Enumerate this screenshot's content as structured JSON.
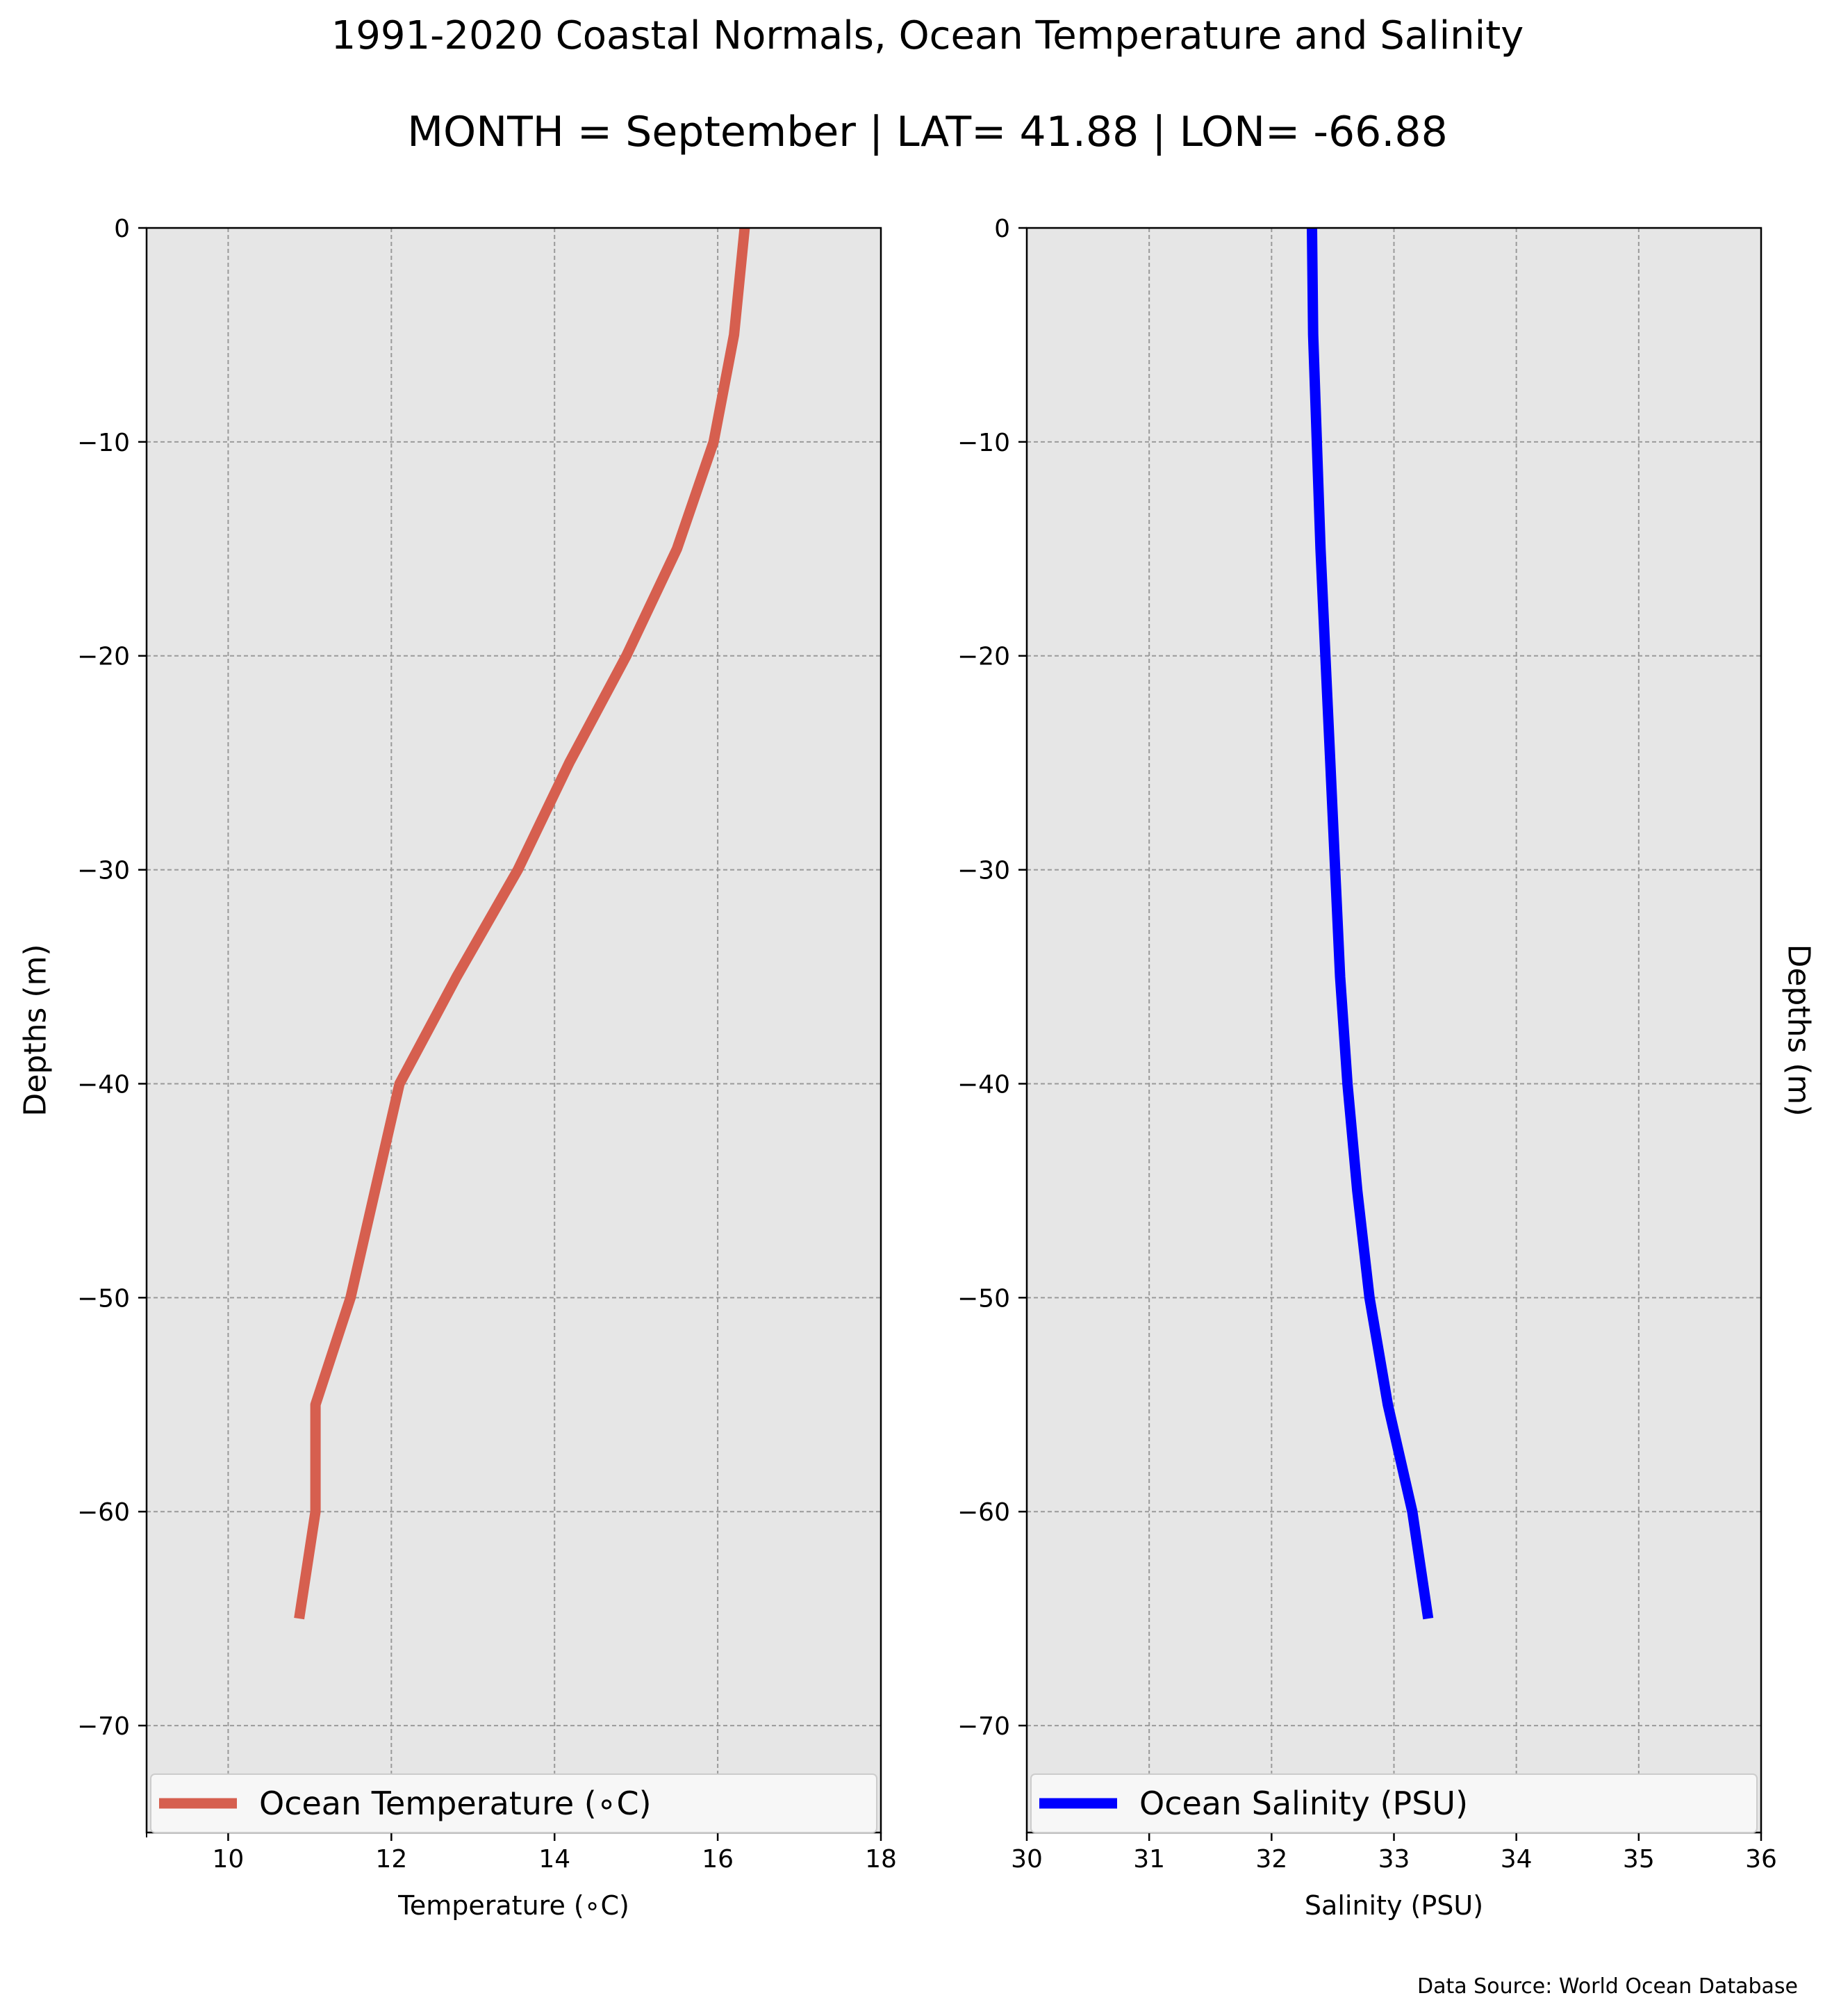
{
  "figure": {
    "title": "1991-2020 Coastal Normals, Ocean Temperature and Salinity",
    "subtitle": "MONTH = September | LAT= 41.88 | LON= -66.88",
    "source_note": "Data Source: World Ocean Database"
  },
  "chart_data": [
    {
      "type": "line",
      "xlabel": "Temperature ($^\\circ$C)",
      "xlabel_display": "Temperature (∘C)",
      "ylabel": "Depths (m)",
      "xlim": [
        9,
        18
      ],
      "ylim": [
        -75,
        0
      ],
      "x_ticks": [
        10,
        12,
        14,
        16,
        18
      ],
      "y_ticks": [
        0,
        -10,
        -20,
        -30,
        -40,
        -50,
        -60,
        -70
      ],
      "grid": true,
      "legend_position": "bottom",
      "series": [
        {
          "name": "Ocean Temperature (∘C)",
          "color": "#d65f4f",
          "x": [
            16.33,
            16.2,
            15.95,
            15.5,
            14.88,
            14.18,
            13.55,
            12.8,
            12.1,
            11.8,
            11.5,
            11.07,
            11.07,
            10.87
          ],
          "y": [
            0,
            -5,
            -10,
            -15,
            -20,
            -25,
            -30,
            -35,
            -40,
            -45,
            -50,
            -55,
            -60,
            -65
          ]
        }
      ]
    },
    {
      "type": "line",
      "xlabel": "Salinity (PSU)",
      "ylabel": "Depths (m)",
      "xlim": [
        30,
        36
      ],
      "ylim": [
        -75,
        0
      ],
      "x_ticks": [
        30,
        31,
        32,
        33,
        34,
        35,
        36
      ],
      "y_ticks": [
        0,
        -10,
        -20,
        -30,
        -40,
        -50,
        -60,
        -70
      ],
      "grid": true,
      "legend_position": "bottom",
      "series": [
        {
          "name": "Ocean Salinity (PSU)",
          "color": "#0000ff",
          "x": [
            32.33,
            32.34,
            32.37,
            32.4,
            32.44,
            32.48,
            32.52,
            32.56,
            32.62,
            32.7,
            32.8,
            32.95,
            33.15,
            33.28
          ],
          "y": [
            0,
            -5,
            -10,
            -15,
            -20,
            -25,
            -30,
            -35,
            -40,
            -45,
            -50,
            -55,
            -60,
            -65
          ]
        }
      ]
    }
  ]
}
